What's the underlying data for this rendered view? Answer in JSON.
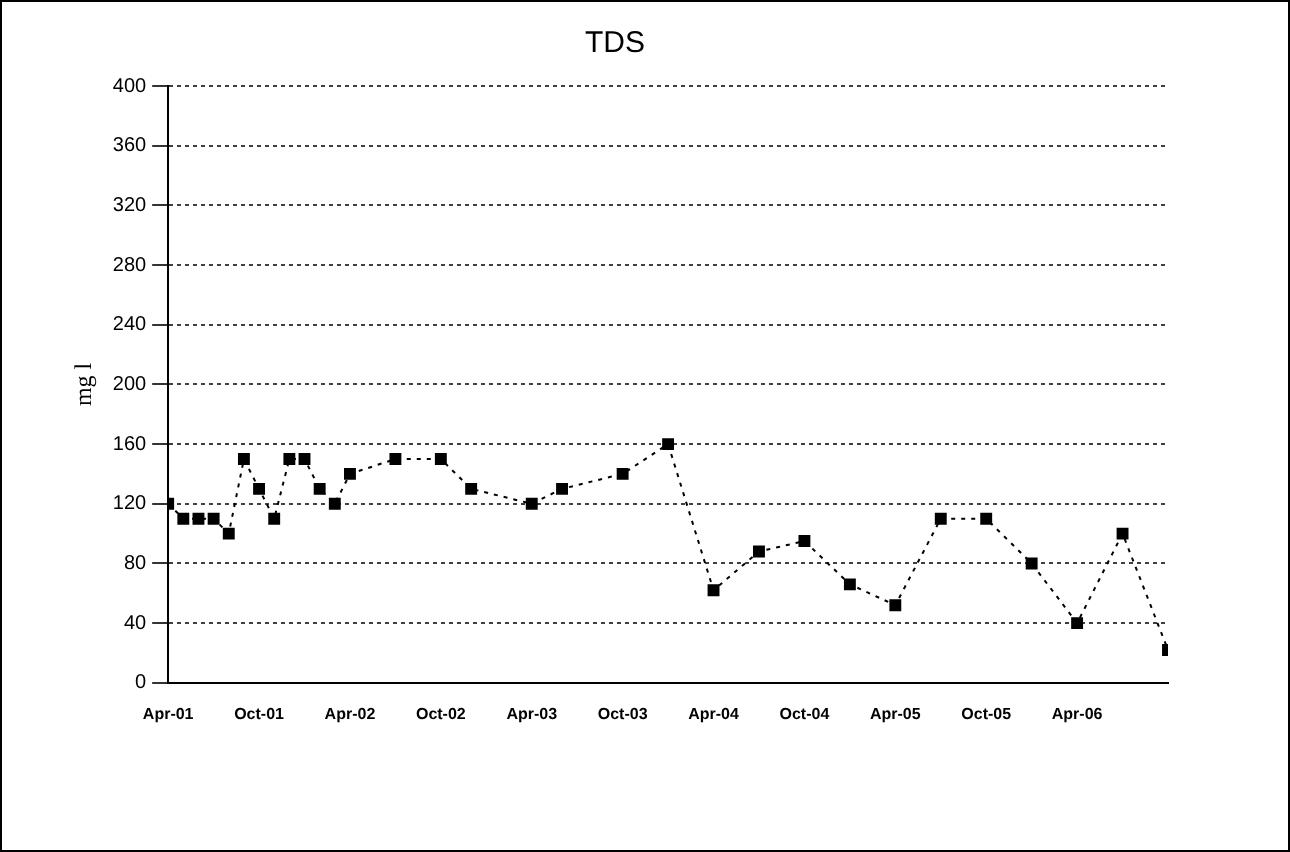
{
  "chart_data": {
    "type": "line",
    "title": "TDS",
    "ylabel": "mg l",
    "x": [
      "2001-04",
      "2001-05",
      "2001-06",
      "2001-07",
      "2001-08",
      "2001-09",
      "2001-10",
      "2001-11",
      "2001-12",
      "2002-01",
      "2002-02",
      "2002-03",
      "2002-04",
      "2002-07",
      "2002-10",
      "2002-12",
      "2003-04",
      "2003-06",
      "2003-10",
      "2004-01",
      "2004-04",
      "2004-07",
      "2004-10",
      "2005-01",
      "2005-04",
      "2005-07",
      "2005-10",
      "2006-01",
      "2006-04",
      "2006-07",
      "2006-10"
    ],
    "series": [
      {
        "color": "#000000",
        "values": [
          120,
          110,
          110,
          110,
          100,
          150,
          130,
          110,
          150,
          150,
          130,
          120,
          140,
          150,
          150,
          130,
          120,
          130,
          140,
          160,
          62,
          88,
          95,
          66,
          52,
          110,
          110,
          80,
          40,
          100,
          22
        ]
      }
    ],
    "xlim": [
      "2001-04",
      "2006-10"
    ],
    "xticks": [
      {
        "value": "2001-04",
        "label": "Apr-01"
      },
      {
        "value": "2001-10",
        "label": "Oct-01"
      },
      {
        "value": "2002-04",
        "label": "Apr-02"
      },
      {
        "value": "2002-10",
        "label": "Oct-02"
      },
      {
        "value": "2003-04",
        "label": "Apr-03"
      },
      {
        "value": "2003-10",
        "label": "Oct-03"
      },
      {
        "value": "2004-04",
        "label": "Apr-04"
      },
      {
        "value": "2004-10",
        "label": "Oct-04"
      },
      {
        "value": "2005-04",
        "label": "Apr-05"
      },
      {
        "value": "2005-10",
        "label": "Oct-05"
      },
      {
        "value": "2006-04",
        "label": "Apr-06"
      }
    ],
    "ylim": [
      0,
      400
    ],
    "yticks": [
      0,
      40,
      80,
      120,
      160,
      200,
      240,
      280,
      320,
      360,
      400
    ],
    "grid": "y",
    "marker": "square",
    "line_style": "dotted",
    "legend": false
  }
}
